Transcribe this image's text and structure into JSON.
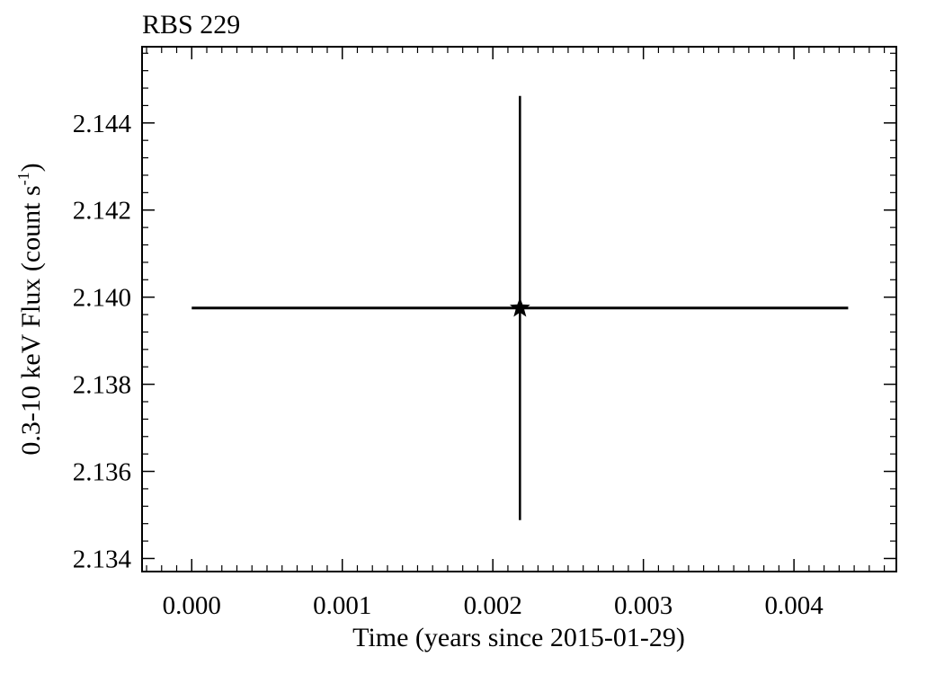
{
  "chart_data": {
    "type": "scatter",
    "title": "RBS 229",
    "xlabel": "Time (years since 2015-01-29)",
    "ylabel": "0.3-10 keV Flux (count s",
    "ylabel_sup": "-1",
    "ylabel_close": ")",
    "xlim": [
      -0.00033,
      0.00468
    ],
    "ylim": [
      2.1337,
      2.14575
    ],
    "x_ticks": [
      0.0,
      0.001,
      0.002,
      0.003,
      0.004
    ],
    "x_tick_labels": [
      "0.000",
      "0.001",
      "0.002",
      "0.003",
      "0.004"
    ],
    "y_ticks": [
      2.134,
      2.136,
      2.138,
      2.14,
      2.142,
      2.144
    ],
    "y_tick_labels": [
      "2.134",
      "2.136",
      "2.138",
      "2.140",
      "2.142",
      "2.144"
    ],
    "grid": false,
    "marker": "star",
    "color": "#000000",
    "points": [
      {
        "x": 0.00218,
        "y": 2.13975,
        "x_err": 0.00218,
        "y_err": 0.00487
      }
    ]
  }
}
